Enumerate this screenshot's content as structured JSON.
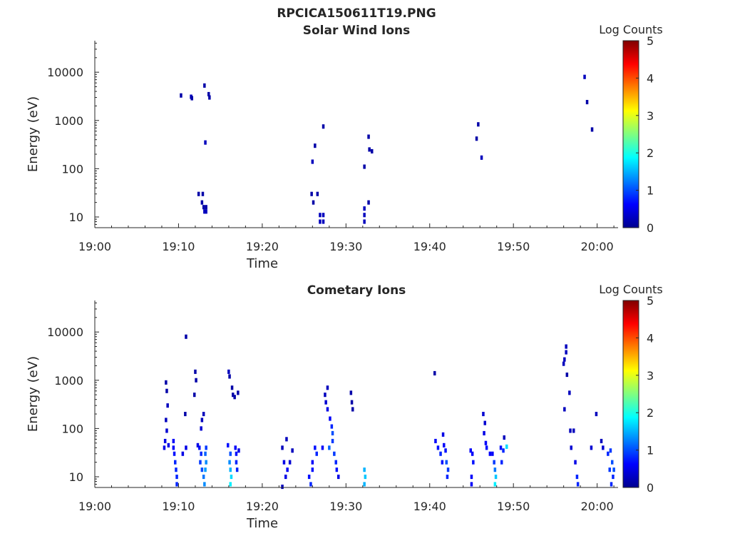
{
  "figure": {
    "title": "RPCICA150611T19.PNG",
    "panels": [
      {
        "title": "Solar Wind Ions",
        "xlabel": "Time",
        "ylabel": "Energy (eV)",
        "colorbar_label": "Log Counts",
        "xticks": [
          "19:00",
          "19:10",
          "19:20",
          "19:30",
          "19:40",
          "19:50",
          "20:00"
        ],
        "yticks": [
          "10",
          "100",
          "1000",
          "10000"
        ],
        "cticks": [
          "0",
          "1",
          "2",
          "3",
          "4",
          "5"
        ]
      },
      {
        "title": "Cometary Ions",
        "xlabel": "Time",
        "ylabel": "Energy (eV)",
        "colorbar_label": "Log Counts",
        "xticks": [
          "19:00",
          "19:10",
          "19:20",
          "19:30",
          "19:40",
          "19:50",
          "20:00"
        ],
        "yticks": [
          "10",
          "100",
          "1000",
          "10000"
        ],
        "cticks": [
          "0",
          "1",
          "2",
          "3",
          "4",
          "5"
        ]
      }
    ]
  },
  "chart_data": [
    {
      "type": "heatmap",
      "title": "Solar Wind Ions",
      "xlabel": "Time",
      "ylabel": "Energy (eV)",
      "x_unit": "minutes after 19:00",
      "xlim": [
        0,
        62.5
      ],
      "ylim": [
        6,
        45000
      ],
      "y_scale": "log",
      "colorbar": {
        "label": "Log Counts",
        "range": [
          0,
          5
        ],
        "colormap": "jet"
      },
      "cells": [
        [
          10.3,
          3300,
          0.2
        ],
        [
          11.5,
          3100,
          0.3
        ],
        [
          11.6,
          2900,
          0.2
        ],
        [
          13.1,
          5300,
          0.2
        ],
        [
          13.6,
          3500,
          0.2
        ],
        [
          13.7,
          3000,
          0.2
        ],
        [
          13.2,
          350,
          0.3
        ],
        [
          12.4,
          30,
          0.2
        ],
        [
          12.9,
          30,
          0.2
        ],
        [
          12.8,
          20,
          0.2
        ],
        [
          13.0,
          16,
          0.2
        ],
        [
          13.1,
          13,
          0.3
        ],
        [
          13.3,
          13,
          0.3
        ],
        [
          13.3,
          16,
          0.2
        ],
        [
          26.3,
          300,
          0.2
        ],
        [
          26.0,
          140,
          0.3
        ],
        [
          27.3,
          750,
          0.2
        ],
        [
          25.9,
          30,
          0.2
        ],
        [
          26.6,
          30,
          0.2
        ],
        [
          26.1,
          20,
          0.2
        ],
        [
          26.9,
          11,
          0.3
        ],
        [
          26.9,
          8,
          0.3
        ],
        [
          27.3,
          11,
          0.3
        ],
        [
          27.3,
          8,
          0.3
        ],
        [
          32.7,
          460,
          0.2
        ],
        [
          32.8,
          250,
          0.2
        ],
        [
          33.1,
          230,
          0.2
        ],
        [
          32.2,
          110,
          0.2
        ],
        [
          32.7,
          20,
          0.2
        ],
        [
          32.2,
          15,
          0.3
        ],
        [
          32.2,
          11,
          0.3
        ],
        [
          32.2,
          8,
          0.3
        ],
        [
          45.8,
          830,
          0.2
        ],
        [
          45.6,
          420,
          0.2
        ],
        [
          46.2,
          170,
          0.3
        ],
        [
          58.5,
          8000,
          0.3
        ],
        [
          58.8,
          2400,
          0.2
        ],
        [
          59.4,
          650,
          0.2
        ]
      ]
    },
    {
      "type": "heatmap",
      "title": "Cometary Ions",
      "xlabel": "Time",
      "ylabel": "Energy (eV)",
      "x_unit": "minutes after 19:00",
      "xlim": [
        0,
        62.5
      ],
      "ylim": [
        6,
        45000
      ],
      "y_scale": "log",
      "colorbar": {
        "label": "Log Counts",
        "range": [
          0,
          5
        ],
        "colormap": "jet"
      },
      "cells": [
        [
          8.5,
          900,
          0.2
        ],
        [
          8.6,
          600,
          0.2
        ],
        [
          8.7,
          300,
          0.3
        ],
        [
          8.5,
          150,
          0.3
        ],
        [
          8.6,
          90,
          0.4
        ],
        [
          8.4,
          55,
          0.5
        ],
        [
          8.8,
          45,
          0.5
        ],
        [
          8.3,
          40,
          0.5
        ],
        [
          9.4,
          55,
          0.6
        ],
        [
          9.4,
          40,
          0.6
        ],
        [
          9.5,
          30,
          0.7
        ],
        [
          9.6,
          20,
          0.8
        ],
        [
          9.7,
          14,
          0.8
        ],
        [
          9.8,
          10,
          0.8
        ],
        [
          9.8,
          7,
          0.8
        ],
        [
          10.5,
          30,
          0.5
        ],
        [
          10.9,
          40,
          0.5
        ],
        [
          10.8,
          200,
          0.2
        ],
        [
          10.9,
          8000,
          0.2
        ],
        [
          12.0,
          1500,
          0.2
        ],
        [
          12.1,
          1000,
          0.2
        ],
        [
          11.9,
          500,
          0.2
        ],
        [
          12.5,
          40,
          0.7
        ],
        [
          12.7,
          30,
          0.8
        ],
        [
          12.3,
          45,
          0.5
        ],
        [
          12.6,
          20,
          0.9
        ],
        [
          12.8,
          14,
          1.0
        ],
        [
          13.0,
          10,
          1.2
        ],
        [
          13.1,
          7,
          1.3
        ],
        [
          13.3,
          40,
          0.9
        ],
        [
          13.2,
          30,
          1.1
        ],
        [
          13.3,
          20,
          1.3
        ],
        [
          13.2,
          14,
          1.4
        ],
        [
          12.8,
          150,
          0.3
        ],
        [
          13.0,
          200,
          0.3
        ],
        [
          12.7,
          100,
          0.4
        ],
        [
          16.0,
          1500,
          0.3
        ],
        [
          16.1,
          1200,
          0.2
        ],
        [
          16.4,
          700,
          0.2
        ],
        [
          16.5,
          500,
          0.2
        ],
        [
          17.1,
          550,
          0.2
        ],
        [
          16.7,
          450,
          0.2
        ],
        [
          15.9,
          45,
          0.7
        ],
        [
          16.2,
          30,
          1.0
        ],
        [
          16.1,
          20,
          1.3
        ],
        [
          16.2,
          14,
          1.5
        ],
        [
          16.3,
          10,
          1.7
        ],
        [
          16.2,
          7,
          1.8
        ],
        [
          16.8,
          40,
          0.6
        ],
        [
          16.9,
          30,
          0.7
        ],
        [
          17.2,
          35,
          0.5
        ],
        [
          16.9,
          20,
          0.8
        ],
        [
          17.0,
          14,
          0.8
        ],
        [
          22.4,
          40,
          0.3
        ],
        [
          22.9,
          60,
          0.3
        ],
        [
          22.6,
          20,
          0.5
        ],
        [
          23.0,
          14,
          0.6
        ],
        [
          22.8,
          10,
          0.5
        ],
        [
          23.3,
          20,
          0.4
        ],
        [
          23.6,
          35,
          0.3
        ],
        [
          22.4,
          6.2,
          0.3
        ],
        [
          25.6,
          10,
          0.7
        ],
        [
          25.8,
          7,
          0.8
        ],
        [
          26.0,
          14,
          0.7
        ],
        [
          26.3,
          40,
          0.7
        ],
        [
          26.5,
          30,
          0.8
        ],
        [
          26.0,
          20,
          0.6
        ],
        [
          27.8,
          700,
          0.3
        ],
        [
          27.5,
          500,
          0.3
        ],
        [
          27.6,
          350,
          0.4
        ],
        [
          27.8,
          250,
          0.5
        ],
        [
          28.1,
          160,
          0.6
        ],
        [
          28.3,
          110,
          0.8
        ],
        [
          28.4,
          80,
          1.0
        ],
        [
          28.0,
          40,
          1.1
        ],
        [
          28.4,
          55,
          0.9
        ],
        [
          28.6,
          30,
          0.9
        ],
        [
          28.8,
          20,
          0.8
        ],
        [
          28.9,
          14,
          0.7
        ],
        [
          27.2,
          40,
          0.6
        ],
        [
          29.1,
          10,
          0.5
        ],
        [
          30.6,
          550,
          0.2
        ],
        [
          30.7,
          350,
          0.2
        ],
        [
          30.8,
          250,
          0.2
        ],
        [
          32.2,
          14,
          1.5
        ],
        [
          32.3,
          10,
          1.6
        ],
        [
          32.2,
          7,
          1.5
        ],
        [
          40.6,
          1400,
          0.2
        ],
        [
          40.7,
          55,
          0.6
        ],
        [
          41.0,
          40,
          0.7
        ],
        [
          41.3,
          30,
          0.8
        ],
        [
          41.5,
          20,
          0.7
        ],
        [
          41.7,
          45,
          0.6
        ],
        [
          41.9,
          35,
          0.7
        ],
        [
          42.0,
          20,
          1.0
        ],
        [
          42.2,
          14,
          0.9
        ],
        [
          42.1,
          10,
          0.8
        ],
        [
          41.6,
          75,
          0.5
        ],
        [
          44.9,
          35,
          0.6
        ],
        [
          45.1,
          30,
          0.6
        ],
        [
          45.2,
          20,
          0.7
        ],
        [
          45.0,
          10,
          0.6
        ],
        [
          45.0,
          7,
          0.6
        ],
        [
          46.4,
          200,
          0.4
        ],
        [
          46.6,
          130,
          0.4
        ],
        [
          46.5,
          80,
          0.5
        ],
        [
          46.7,
          50,
          0.6
        ],
        [
          46.8,
          40,
          0.7
        ],
        [
          47.2,
          30,
          0.6
        ],
        [
          47.5,
          30,
          0.6
        ],
        [
          47.7,
          20,
          0.9
        ],
        [
          47.8,
          14,
          1.2
        ],
        [
          47.9,
          10,
          1.6
        ],
        [
          47.8,
          7,
          1.8
        ],
        [
          48.5,
          40,
          0.7
        ],
        [
          48.8,
          35,
          0.8
        ],
        [
          48.9,
          65,
          0.3
        ],
        [
          49.2,
          42,
          1.7
        ],
        [
          48.6,
          20,
          0.8
        ],
        [
          56.3,
          5000,
          0.3
        ],
        [
          56.3,
          3800,
          0.3
        ],
        [
          56.1,
          2700,
          0.3
        ],
        [
          56.0,
          2200,
          0.3
        ],
        [
          56.4,
          1300,
          0.2
        ],
        [
          56.7,
          550,
          0.3
        ],
        [
          56.1,
          250,
          0.3
        ],
        [
          56.8,
          90,
          0.3
        ],
        [
          57.2,
          90,
          0.3
        ],
        [
          56.9,
          40,
          0.4
        ],
        [
          57.4,
          20,
          0.5
        ],
        [
          57.6,
          10,
          0.8
        ],
        [
          57.7,
          7,
          0.8
        ],
        [
          59.3,
          40,
          0.4
        ],
        [
          59.9,
          200,
          0.3
        ],
        [
          60.5,
          55,
          0.3
        ],
        [
          60.7,
          40,
          0.4
        ],
        [
          61.3,
          30,
          0.8
        ],
        [
          61.6,
          35,
          0.9
        ],
        [
          61.8,
          20,
          1.0
        ],
        [
          61.5,
          14,
          0.9
        ],
        [
          61.9,
          10,
          0.8
        ],
        [
          61.7,
          7,
          0.8
        ],
        [
          62.0,
          14,
          1.0
        ]
      ]
    }
  ]
}
